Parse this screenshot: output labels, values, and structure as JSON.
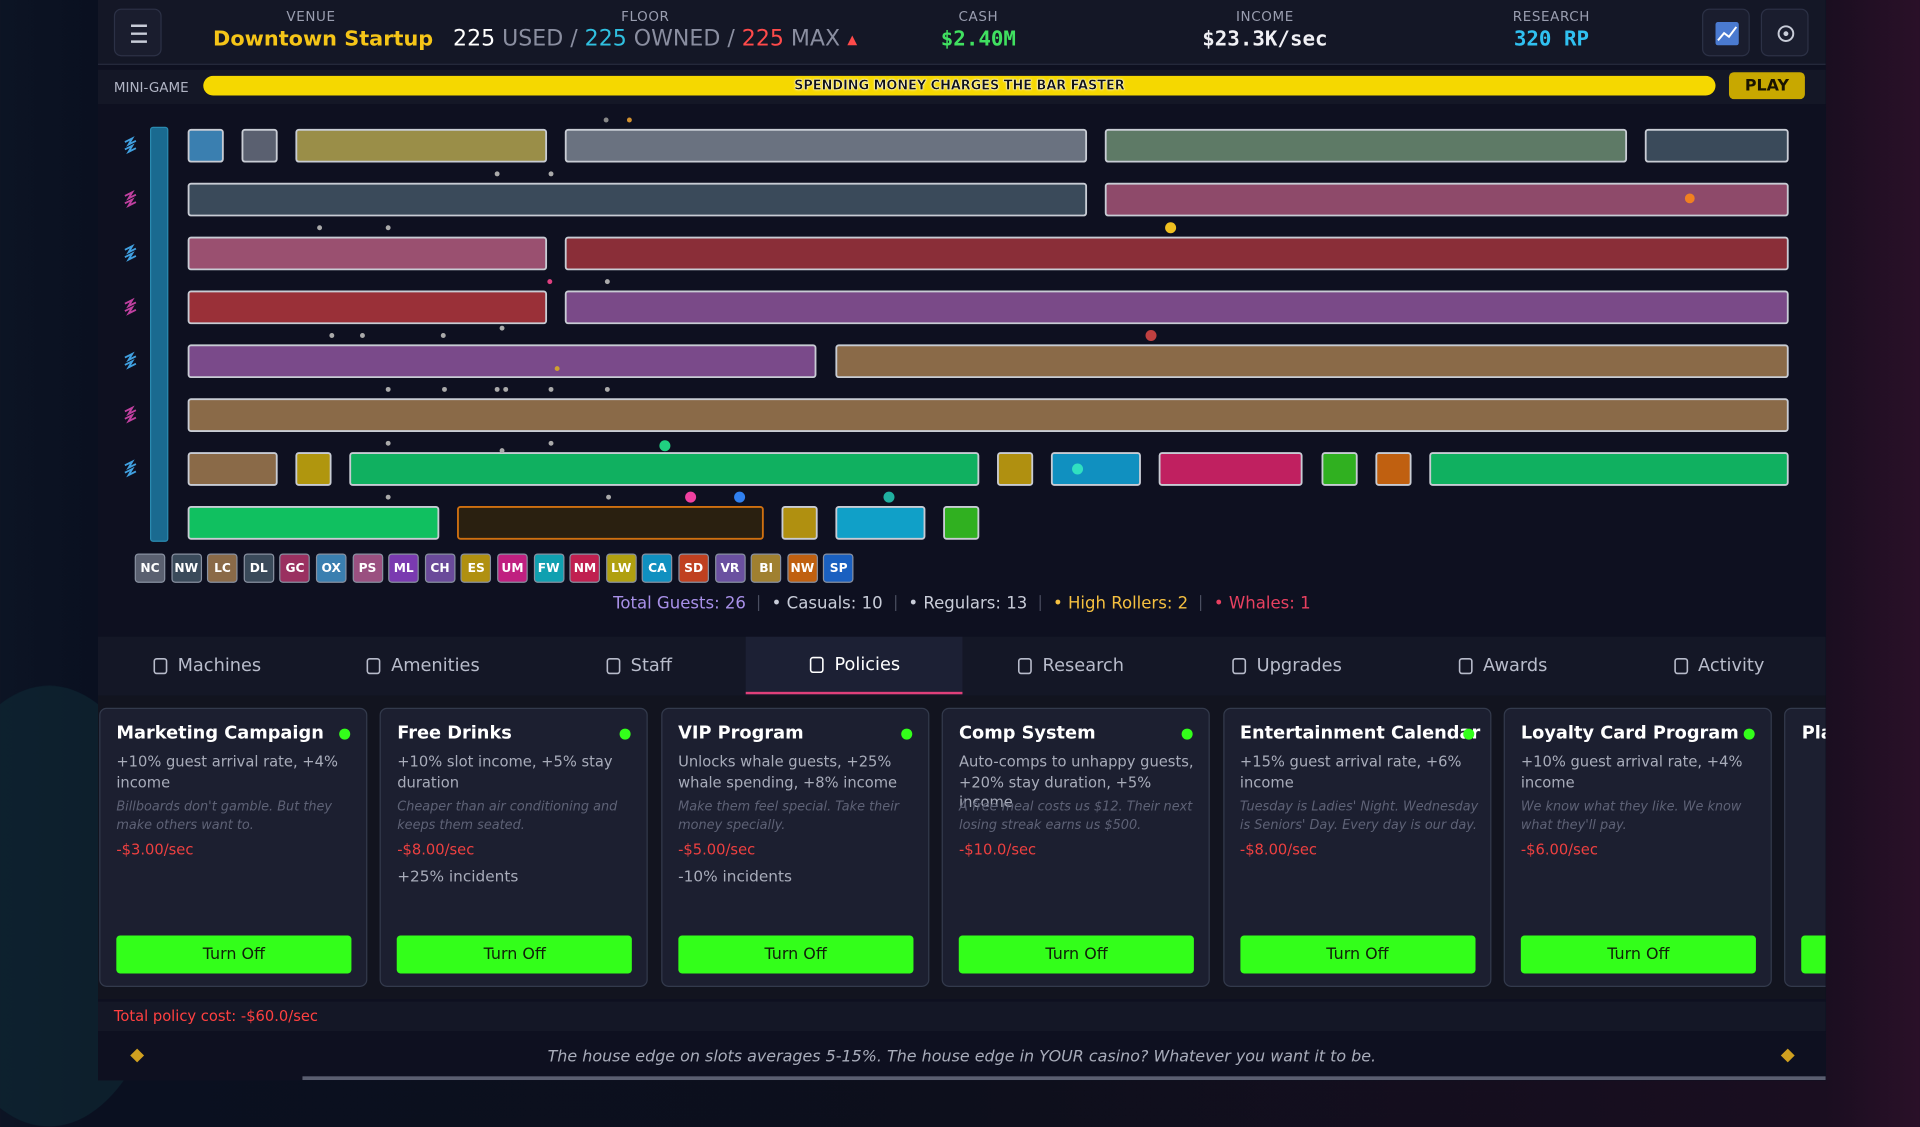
{
  "header": {
    "venue_label": "VENUE",
    "venue": "Downtown Startup",
    "floor_label": "FLOOR",
    "used": "225",
    "used_label": "USED",
    "separator": "/",
    "owned": "225",
    "owned_label": "OWNED",
    "max": "225",
    "max_label": "MAX",
    "cash_label": "CASH",
    "cash": "$2.40M",
    "income_label": "INCOME",
    "income": "$23.3K/sec",
    "research_label": "RESEARCH",
    "research": "320 RP"
  },
  "minigame": {
    "label": "MINI-GAME",
    "text": "SPENDING MONEY CHARGES THE BAR FASTER",
    "button": "PLAY"
  },
  "floor": {
    "chips": [
      {
        "code": "NC",
        "color": "#5a6070"
      },
      {
        "code": "NW",
        "color": "#3a4a5a"
      },
      {
        "code": "LC",
        "color": "#8a6a48"
      },
      {
        "code": "DL",
        "color": "#3a4a5a"
      },
      {
        "code": "GC",
        "color": "#9a3060"
      },
      {
        "code": "OX",
        "color": "#3a7fb0"
      },
      {
        "code": "PS",
        "color": "#9a5080"
      },
      {
        "code": "ML",
        "color": "#7a3ab0"
      },
      {
        "code": "CH",
        "color": "#6a4a9a"
      },
      {
        "code": "ES",
        "color": "#b09010"
      },
      {
        "code": "UM",
        "color": "#c02080"
      },
      {
        "code": "FW",
        "color": "#10a0b0"
      },
      {
        "code": "NM",
        "color": "#c02050"
      },
      {
        "code": "LW",
        "color": "#b0a010"
      },
      {
        "code": "CA",
        "color": "#1090c0"
      },
      {
        "code": "SD",
        "color": "#c04020"
      },
      {
        "code": "VR",
        "color": "#6a50a0"
      },
      {
        "code": "BI",
        "color": "#a08030"
      },
      {
        "code": "NW",
        "color": "#c06010"
      },
      {
        "code": "SP",
        "color": "#1a60c0"
      }
    ]
  },
  "guests": {
    "total": "Total Guests: 26",
    "casuals": "• Casuals: 10",
    "regulars": "• Regulars: 13",
    "high_rollers": "• High Rollers: 2",
    "whales": "• Whales: 1"
  },
  "tabs": {
    "items": [
      "Machines",
      "Amenities",
      "Staff",
      "Policies",
      "Research",
      "Upgrades",
      "Awards",
      "Activity"
    ],
    "active": 3
  },
  "policies": {
    "cards": [
      {
        "name": "Marketing Campaign",
        "effect": "+10% guest arrival rate, +4% income",
        "flavor": "Billboards don't gamble. But they make others want to.",
        "cost": "-$3.00/sec",
        "button": "Turn Off"
      },
      {
        "name": "Free Drinks",
        "effect": "+10% slot income, +5% stay duration",
        "flavor": "Cheaper than air conditioning and keeps them seated.",
        "cost": "-$8.00/sec",
        "extra": "+25% incidents",
        "button": "Turn Off"
      },
      {
        "name": "VIP Program",
        "effect": "Unlocks whale guests, +25% whale spending, +8% income",
        "flavor": "Make them feel special. Take their money specially.",
        "cost": "-$5.00/sec",
        "extra": "-10% incidents",
        "button": "Turn Off"
      },
      {
        "name": "Comp System",
        "effect": "Auto-comps to unhappy guests, +20% stay duration, +5% income",
        "flavor": "A free meal costs us $12. Their next losing streak earns us $500.",
        "cost": "-$10.0/sec",
        "button": "Turn Off"
      },
      {
        "name": "Entertainment Calendar",
        "effect": "+15% guest arrival rate, +6% income",
        "flavor": "Tuesday is Ladies' Night. Wednesday is Seniors' Day. Every day is our day.",
        "cost": "-$8.00/sec",
        "button": "Turn Off"
      },
      {
        "name": "Loyalty Card Program",
        "effect": "+10% guest arrival rate, +4% income",
        "flavor": "We know what they like. We know what they'll pay.",
        "cost": "-$6.00/sec",
        "button": "Turn Off"
      },
      {
        "name": "Pla"
      }
    ],
    "total": "Total policy cost: -$60.0/sec"
  },
  "footer": {
    "tip": "The house edge on slots averages 5-15%. The house edge in YOUR casino? Whatever you want it to be."
  }
}
